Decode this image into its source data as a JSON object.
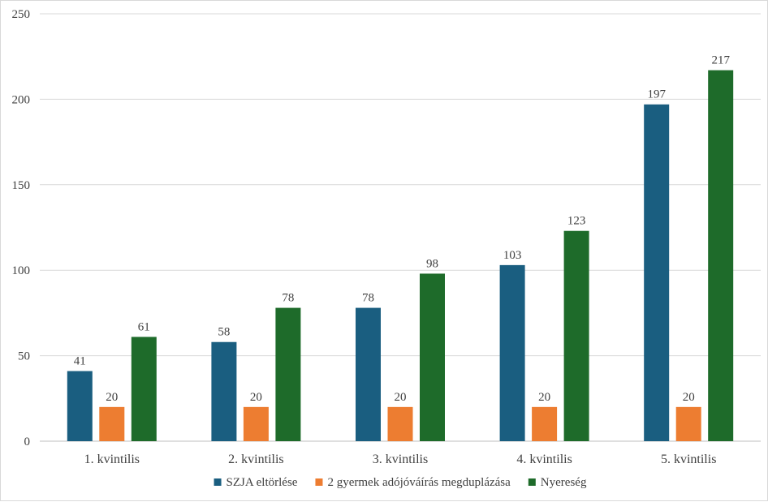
{
  "chart_data": {
    "type": "bar",
    "categories": [
      "1. kvintilis",
      "2. kvintilis",
      "3. kvintilis",
      "4. kvintilis",
      "5. kvintilis"
    ],
    "series": [
      {
        "name": "SZJA eltörlése",
        "values": [
          41,
          58,
          78,
          103,
          197
        ],
        "color": "#1a5e80"
      },
      {
        "name": "2 gyermek adójóváírás megduplázása",
        "values": [
          20,
          20,
          20,
          20,
          20
        ],
        "color": "#ed7d31"
      },
      {
        "name": "Nyereség",
        "values": [
          61,
          78,
          98,
          123,
          217
        ],
        "color": "#1e6b2a"
      }
    ],
    "ylim": [
      0,
      250
    ],
    "yticks": [
      0,
      50,
      100,
      150,
      200,
      250
    ],
    "grid": true,
    "legend_position": "bottom",
    "data_labels": true
  }
}
